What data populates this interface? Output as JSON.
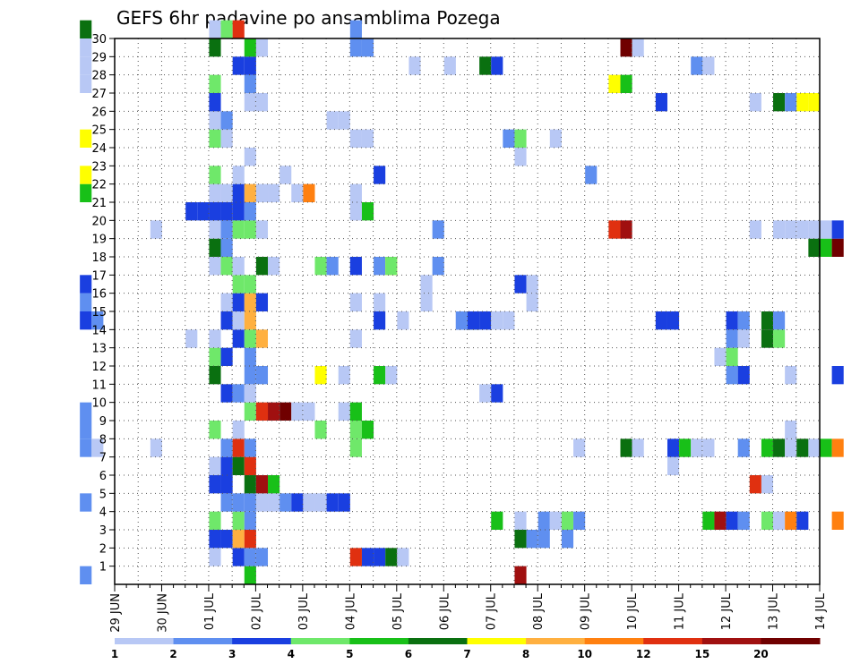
{
  "chart_data": {
    "type": "heatmap",
    "title": "GEFS 6hr padavine po ansamblima Pozega",
    "xlabel": "",
    "ylabel": "",
    "x_ticks": [
      "29 JUN",
      "30 JUN",
      "01 JUL",
      "02 JUL",
      "03 JUL",
      "04 JUL",
      "05 JUL",
      "06 JUL",
      "07 JUL",
      "08 JUL",
      "09 JUL",
      "10 JUL",
      "11 JUL",
      "12 JUL",
      "13 JUL",
      "14 JUL"
    ],
    "x_range_days": [
      0,
      15
    ],
    "y_ticks": [
      "1",
      "2",
      "3",
      "4",
      "5",
      "6",
      "7",
      "8",
      "9",
      "10",
      "11",
      "12",
      "13",
      "14",
      "15",
      "16",
      "17",
      "18",
      "19",
      "20",
      "21",
      "22",
      "23",
      "24",
      "25",
      "26",
      "27",
      "28",
      "29",
      "30"
    ],
    "y_range": [
      0,
      30
    ],
    "grid": "dotted",
    "colorbar": {
      "labels": [
        "1",
        "2",
        "3",
        "4",
        "5",
        "6",
        "7",
        "8",
        "10",
        "12",
        "15",
        "20"
      ],
      "colors": [
        "#b8c8f5",
        "#5f8ff0",
        "#1a3fe0",
        "#6fe86a",
        "#18c018",
        "#0a7010",
        "#ffff00",
        "#ffb040",
        "#ff8010",
        "#e03010",
        "#a01010",
        "#700000"
      ]
    },
    "cells": [
      [
        0.25,
        0,
        1
      ],
      [
        0.25,
        4,
        1
      ],
      [
        0.25,
        7,
        1
      ],
      [
        0.25,
        8,
        1
      ],
      [
        0.25,
        9,
        1
      ],
      [
        0.25,
        14,
        2
      ],
      [
        0.25,
        15,
        1
      ],
      [
        0.25,
        16,
        2
      ],
      [
        0.25,
        21,
        4
      ],
      [
        0.25,
        22,
        6
      ],
      [
        0.25,
        24,
        6
      ],
      [
        0.25,
        27,
        0
      ],
      [
        0.25,
        28,
        0
      ],
      [
        0.25,
        29,
        0
      ],
      [
        0.25,
        30,
        5
      ],
      [
        0.5,
        7,
        0
      ],
      [
        0.5,
        14,
        1
      ],
      [
        1.75,
        7,
        0
      ],
      [
        1.75,
        19,
        0
      ],
      [
        2.5,
        13,
        0
      ],
      [
        2.5,
        20,
        2
      ],
      [
        2.75,
        20,
        2
      ],
      [
        3.0,
        1,
        0
      ],
      [
        3.0,
        2,
        2
      ],
      [
        3.0,
        3,
        3
      ],
      [
        3.0,
        5,
        2
      ],
      [
        3.0,
        6,
        0
      ],
      [
        3.0,
        8,
        3
      ],
      [
        3.0,
        11,
        5
      ],
      [
        3.0,
        12,
        3
      ],
      [
        3.0,
        13,
        0
      ],
      [
        3.0,
        17,
        0
      ],
      [
        3.0,
        18,
        5
      ],
      [
        3.0,
        19,
        0
      ],
      [
        3.0,
        20,
        2
      ],
      [
        3.0,
        21,
        0
      ],
      [
        3.0,
        22,
        3
      ],
      [
        3.0,
        24,
        3
      ],
      [
        3.0,
        25,
        0
      ],
      [
        3.0,
        26,
        2
      ],
      [
        3.0,
        27,
        3
      ],
      [
        3.0,
        29,
        5
      ],
      [
        3.0,
        30,
        0
      ],
      [
        3.25,
        2,
        2
      ],
      [
        3.25,
        4,
        1
      ],
      [
        3.25,
        5,
        2
      ],
      [
        3.25,
        6,
        2
      ],
      [
        3.25,
        7,
        1
      ],
      [
        3.25,
        10,
        2
      ],
      [
        3.25,
        12,
        2
      ],
      [
        3.25,
        14,
        2
      ],
      [
        3.25,
        15,
        0
      ],
      [
        3.25,
        17,
        3
      ],
      [
        3.25,
        18,
        1
      ],
      [
        3.25,
        19,
        1
      ],
      [
        3.25,
        20,
        2
      ],
      [
        3.25,
        21,
        0
      ],
      [
        3.25,
        24,
        0
      ],
      [
        3.25,
        25,
        1
      ],
      [
        3.25,
        30,
        3
      ],
      [
        3.5,
        1,
        2
      ],
      [
        3.5,
        2,
        7
      ],
      [
        3.5,
        3,
        3
      ],
      [
        3.5,
        4,
        1
      ],
      [
        3.5,
        6,
        5
      ],
      [
        3.5,
        7,
        9
      ],
      [
        3.5,
        8,
        0
      ],
      [
        3.5,
        10,
        1
      ],
      [
        3.5,
        13,
        2
      ],
      [
        3.5,
        14,
        0
      ],
      [
        3.5,
        15,
        2
      ],
      [
        3.5,
        16,
        3
      ],
      [
        3.5,
        17,
        0
      ],
      [
        3.5,
        19,
        3
      ],
      [
        3.5,
        20,
        2
      ],
      [
        3.5,
        21,
        2
      ],
      [
        3.5,
        22,
        0
      ],
      [
        3.5,
        28,
        2
      ],
      [
        3.5,
        30,
        9
      ],
      [
        3.75,
        0,
        4
      ],
      [
        3.75,
        1,
        1
      ],
      [
        3.75,
        2,
        9
      ],
      [
        3.75,
        3,
        1
      ],
      [
        3.75,
        4,
        1
      ],
      [
        3.75,
        5,
        5
      ],
      [
        3.75,
        6,
        9
      ],
      [
        3.75,
        7,
        1
      ],
      [
        3.75,
        9,
        3
      ],
      [
        3.75,
        10,
        0
      ],
      [
        3.75,
        11,
        1
      ],
      [
        3.75,
        12,
        1
      ],
      [
        3.75,
        13,
        3
      ],
      [
        3.75,
        14,
        7
      ],
      [
        3.75,
        15,
        7
      ],
      [
        3.75,
        16,
        3
      ],
      [
        3.75,
        19,
        3
      ],
      [
        3.75,
        20,
        1
      ],
      [
        3.75,
        21,
        7
      ],
      [
        3.75,
        23,
        0
      ],
      [
        3.75,
        26,
        0
      ],
      [
        3.75,
        27,
        1
      ],
      [
        3.75,
        28,
        2
      ],
      [
        3.75,
        29,
        4
      ],
      [
        4.0,
        1,
        1
      ],
      [
        4.0,
        4,
        0
      ],
      [
        4.0,
        5,
        10
      ],
      [
        4.0,
        9,
        9
      ],
      [
        4.0,
        11,
        1
      ],
      [
        4.0,
        13,
        7
      ],
      [
        4.0,
        15,
        2
      ],
      [
        4.0,
        17,
        5
      ],
      [
        4.0,
        19,
        0
      ],
      [
        4.0,
        21,
        0
      ],
      [
        4.0,
        26,
        0
      ],
      [
        4.0,
        29,
        0
      ],
      [
        4.25,
        4,
        0
      ],
      [
        4.25,
        5,
        4
      ],
      [
        4.25,
        9,
        10
      ],
      [
        4.25,
        17,
        0
      ],
      [
        4.25,
        21,
        0
      ],
      [
        4.5,
        4,
        1
      ],
      [
        4.5,
        9,
        11
      ],
      [
        4.5,
        22,
        0
      ],
      [
        4.75,
        4,
        2
      ],
      [
        4.75,
        9,
        0
      ],
      [
        4.75,
        21,
        0
      ],
      [
        5.0,
        4,
        0
      ],
      [
        5.0,
        9,
        0
      ],
      [
        5.0,
        21,
        8
      ],
      [
        5.25,
        4,
        0
      ],
      [
        5.25,
        8,
        3
      ],
      [
        5.25,
        11,
        6
      ],
      [
        5.25,
        17,
        3
      ],
      [
        5.5,
        4,
        2
      ],
      [
        5.5,
        17,
        1
      ],
      [
        5.5,
        25,
        0
      ],
      [
        5.75,
        4,
        2
      ],
      [
        5.75,
        9,
        0
      ],
      [
        5.75,
        11,
        0
      ],
      [
        5.75,
        25,
        0
      ],
      [
        6.0,
        1,
        9
      ],
      [
        6.0,
        7,
        3
      ],
      [
        6.0,
        8,
        3
      ],
      [
        6.0,
        9,
        4
      ],
      [
        6.0,
        13,
        0
      ],
      [
        6.0,
        15,
        0
      ],
      [
        6.0,
        17,
        2
      ],
      [
        6.0,
        20,
        0
      ],
      [
        6.0,
        21,
        0
      ],
      [
        6.0,
        24,
        0
      ],
      [
        6.0,
        29,
        1
      ],
      [
        6.0,
        30,
        1
      ],
      [
        6.25,
        1,
        2
      ],
      [
        6.25,
        8,
        4
      ],
      [
        6.25,
        20,
        4
      ],
      [
        6.25,
        24,
        0
      ],
      [
        6.25,
        29,
        1
      ],
      [
        6.5,
        1,
        2
      ],
      [
        6.5,
        11,
        4
      ],
      [
        6.5,
        14,
        2
      ],
      [
        6.5,
        15,
        0
      ],
      [
        6.5,
        17,
        1
      ],
      [
        6.5,
        22,
        2
      ],
      [
        6.75,
        1,
        5
      ],
      [
        6.75,
        11,
        0
      ],
      [
        6.75,
        17,
        6
      ],
      [
        6.75,
        17,
        3
      ],
      [
        7.0,
        1,
        0
      ],
      [
        7.0,
        14,
        0
      ],
      [
        7.25,
        28,
        0
      ],
      [
        7.5,
        15,
        0
      ],
      [
        7.5,
        16,
        0
      ],
      [
        7.75,
        17,
        1
      ],
      [
        7.75,
        19,
        1
      ],
      [
        8.0,
        28,
        0
      ],
      [
        8.25,
        14,
        2
      ],
      [
        8.25,
        14,
        1
      ],
      [
        8.5,
        14,
        5
      ],
      [
        8.5,
        14,
        2
      ],
      [
        8.75,
        10,
        0
      ],
      [
        8.75,
        14,
        2
      ],
      [
        8.75,
        28,
        5
      ],
      [
        9.0,
        3,
        4
      ],
      [
        9.0,
        10,
        2
      ],
      [
        9.0,
        14,
        0
      ],
      [
        9.0,
        28,
        2
      ],
      [
        9.25,
        14,
        0
      ],
      [
        9.25,
        24,
        1
      ],
      [
        9.5,
        0,
        10
      ],
      [
        9.5,
        2,
        5
      ],
      [
        9.5,
        3,
        0
      ],
      [
        9.5,
        16,
        2
      ],
      [
        9.5,
        23,
        0
      ],
      [
        9.5,
        24,
        3
      ],
      [
        9.75,
        2,
        1
      ],
      [
        9.75,
        15,
        0
      ],
      [
        9.75,
        16,
        0
      ],
      [
        10.0,
        2,
        1
      ],
      [
        10.0,
        3,
        1
      ],
      [
        10.25,
        3,
        0
      ],
      [
        10.25,
        24,
        0
      ],
      [
        10.5,
        2,
        1
      ],
      [
        10.5,
        3,
        3
      ],
      [
        10.75,
        3,
        1
      ],
      [
        10.75,
        7,
        0
      ],
      [
        11.0,
        22,
        1
      ],
      [
        11.5,
        19,
        9
      ],
      [
        11.5,
        27,
        6
      ],
      [
        11.75,
        7,
        5
      ],
      [
        11.75,
        19,
        10
      ],
      [
        11.75,
        27,
        4
      ],
      [
        11.75,
        29,
        11
      ],
      [
        12.0,
        7,
        0
      ],
      [
        12.0,
        29,
        0
      ],
      [
        12.5,
        14,
        2
      ],
      [
        12.5,
        26,
        2
      ],
      [
        12.75,
        6,
        0
      ],
      [
        12.75,
        7,
        2
      ],
      [
        12.75,
        14,
        2
      ],
      [
        13.0,
        7,
        4
      ],
      [
        13.25,
        7,
        0
      ],
      [
        13.25,
        28,
        1
      ],
      [
        13.5,
        3,
        4
      ],
      [
        13.5,
        7,
        0
      ],
      [
        13.5,
        28,
        0
      ],
      [
        13.75,
        3,
        10
      ],
      [
        13.75,
        12,
        0
      ],
      [
        14.0,
        3,
        2
      ],
      [
        14.0,
        11,
        1
      ],
      [
        14.0,
        12,
        3
      ],
      [
        14.0,
        13,
        1
      ],
      [
        14.0,
        14,
        2
      ],
      [
        14.25,
        3,
        1
      ],
      [
        14.25,
        7,
        1
      ],
      [
        14.25,
        11,
        2
      ],
      [
        14.25,
        13,
        0
      ],
      [
        14.25,
        14,
        1
      ],
      [
        14.5,
        5,
        9
      ],
      [
        14.5,
        19,
        0
      ],
      [
        14.5,
        26,
        0
      ],
      [
        14.75,
        5,
        0
      ],
      [
        14.75,
        3,
        3
      ],
      [
        14.75,
        7,
        4
      ],
      [
        14.75,
        13,
        5
      ],
      [
        14.75,
        14,
        5
      ],
      [
        15.0,
        7,
        5
      ],
      [
        15.0,
        13,
        3
      ],
      [
        15.0,
        14,
        1
      ],
      [
        15.0,
        3,
        0
      ],
      [
        15.0,
        19,
        0
      ],
      [
        15.0,
        26,
        5
      ],
      [
        15.25,
        3,
        8
      ],
      [
        15.25,
        7,
        0
      ],
      [
        15.25,
        8,
        0
      ],
      [
        15.25,
        11,
        0
      ],
      [
        15.25,
        19,
        0
      ],
      [
        15.25,
        26,
        1
      ],
      [
        15.5,
        3,
        2
      ],
      [
        15.5,
        7,
        5
      ],
      [
        15.5,
        19,
        0
      ],
      [
        15.5,
        26,
        6
      ],
      [
        15.75,
        7,
        0
      ],
      [
        15.75,
        18,
        5
      ],
      [
        15.75,
        19,
        0
      ],
      [
        15.75,
        26,
        6
      ],
      [
        16.0,
        7,
        4
      ],
      [
        16.0,
        18,
        4
      ],
      [
        16.0,
        19,
        0
      ],
      [
        16.25,
        3,
        8
      ],
      [
        16.25,
        7,
        8
      ],
      [
        16.25,
        11,
        2
      ],
      [
        16.25,
        18,
        11
      ],
      [
        16.25,
        19,
        2
      ]
    ]
  }
}
